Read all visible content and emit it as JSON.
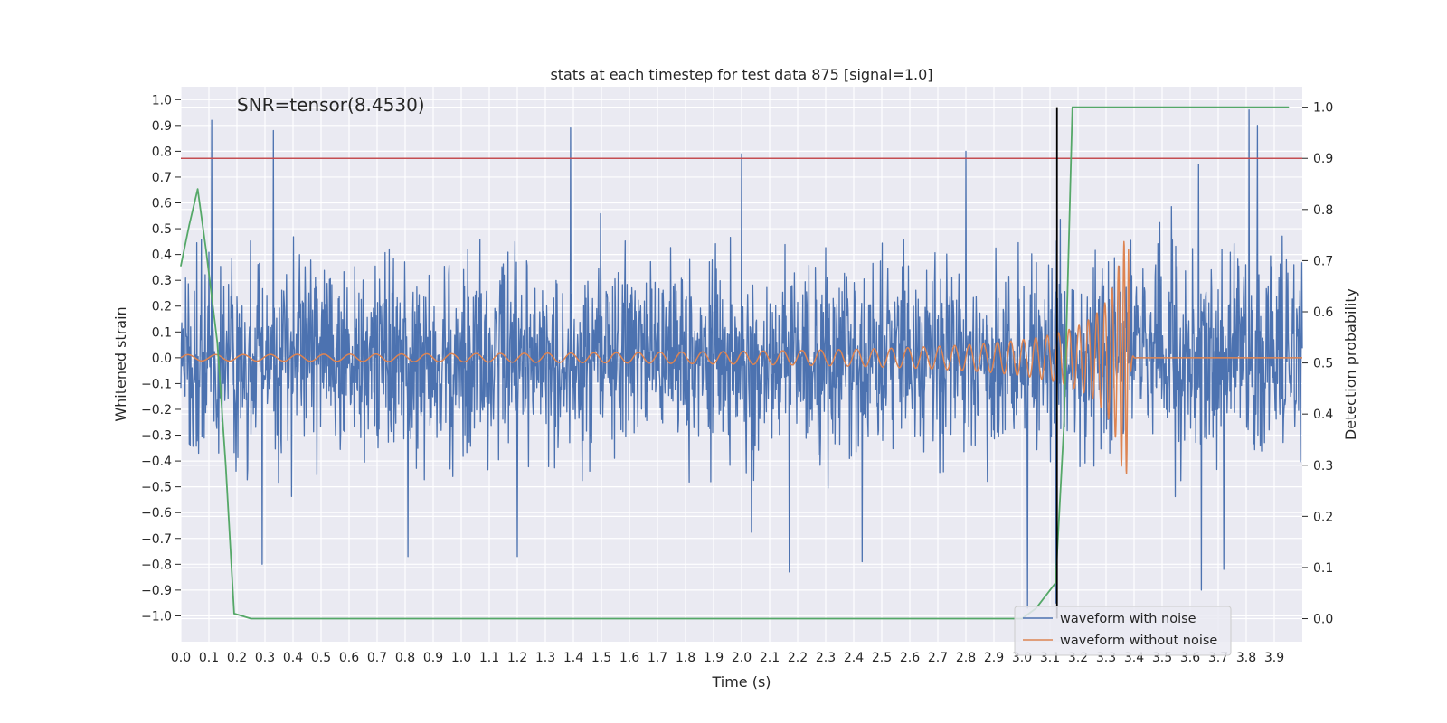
{
  "chart_data": {
    "type": "line",
    "title": "stats at each timestep for test data 875 [signal=1.0]",
    "xlabel": "Time (s)",
    "ylabel": "Whitened strain",
    "y2label": "Detection probability",
    "annotation": "SNR=tensor(8.4530)",
    "xlim": [
      0.0,
      4.0
    ],
    "ylim": [
      -1.1,
      1.05
    ],
    "y2lim": [
      -0.045,
      1.04
    ],
    "xticks": [
      "0.0",
      "0.1",
      "0.2",
      "0.3",
      "0.4",
      "0.5",
      "0.6",
      "0.7",
      "0.8",
      "0.9",
      "1.0",
      "1.1",
      "1.2",
      "1.3",
      "1.4",
      "1.5",
      "1.6",
      "1.7",
      "1.8",
      "1.9",
      "2.0",
      "2.1",
      "2.2",
      "2.3",
      "2.4",
      "2.5",
      "2.6",
      "2.7",
      "2.8",
      "2.9",
      "3.0",
      "3.1",
      "3.2",
      "3.3",
      "3.4",
      "3.5",
      "3.6",
      "3.7",
      "3.8",
      "3.9"
    ],
    "yticks": [
      "1.0",
      "0.9",
      "0.8",
      "0.7",
      "0.6",
      "0.5",
      "0.4",
      "0.3",
      "0.2",
      "0.1",
      "0.0",
      "−0.1",
      "−0.2",
      "−0.3",
      "−0.4",
      "−0.5",
      "−0.6",
      "−0.7",
      "−0.8",
      "−0.9",
      "−1.0"
    ],
    "y2ticks": [
      "1.0",
      "0.9",
      "0.8",
      "0.7",
      "0.6",
      "0.5",
      "0.4",
      "0.3",
      "0.2",
      "0.1",
      "0.0"
    ],
    "grid": true,
    "legend_position": "bottom-right",
    "series": [
      {
        "name": "waveform with noise",
        "axis": "left",
        "color": "#4c72b0",
        "style": "dense-noise",
        "x_range": [
          0.0,
          4.0
        ],
        "amplitude_typical": 0.4,
        "peaks": [
          [
            0.11,
            0.92
          ],
          [
            0.33,
            0.88
          ],
          [
            1.39,
            0.89
          ],
          [
            2.0,
            0.79
          ],
          [
            2.8,
            0.8
          ],
          [
            3.63,
            0.75
          ],
          [
            3.81,
            0.96
          ],
          [
            3.84,
            0.9
          ]
        ],
        "troughs": [
          [
            0.29,
            -0.8
          ],
          [
            0.81,
            -0.77
          ],
          [
            1.2,
            -0.77
          ],
          [
            2.17,
            -0.83
          ],
          [
            2.43,
            -0.79
          ],
          [
            3.02,
            -0.97
          ],
          [
            3.12,
            -0.95
          ],
          [
            3.64,
            -0.9
          ],
          [
            3.72,
            -0.82
          ]
        ]
      },
      {
        "name": "waveform without noise",
        "axis": "left",
        "color": "#dd8452",
        "style": "chirp",
        "x_range": [
          0.0,
          4.0
        ],
        "merger_time": 3.38,
        "start_amplitude": 0.012,
        "peak_amplitude": 0.45,
        "peak_min": -0.45,
        "start_frequency_hz": 10,
        "end_frequency_hz": 60,
        "post_merger_value": 0.0
      },
      {
        "name": "",
        "axis": "right",
        "color": "#55a868",
        "style": "line",
        "x": [
          0.0,
          0.03,
          0.06,
          0.09,
          0.13,
          0.16,
          0.19,
          0.25,
          2.97,
          3.0,
          3.05,
          3.12,
          3.15,
          3.18,
          3.25,
          3.95
        ],
        "y": [
          0.69,
          0.77,
          0.84,
          0.72,
          0.54,
          0.3,
          0.01,
          0.0,
          0.0,
          0.0,
          0.02,
          0.07,
          0.38,
          1.0,
          1.0,
          1.0
        ]
      }
    ],
    "threshold_line": {
      "axis": "right",
      "value": 0.9,
      "color": "#c44e52"
    },
    "vertical_line": {
      "x": 3.125,
      "color": "#000000",
      "y2_range": [
        0.0,
        1.0
      ]
    }
  }
}
